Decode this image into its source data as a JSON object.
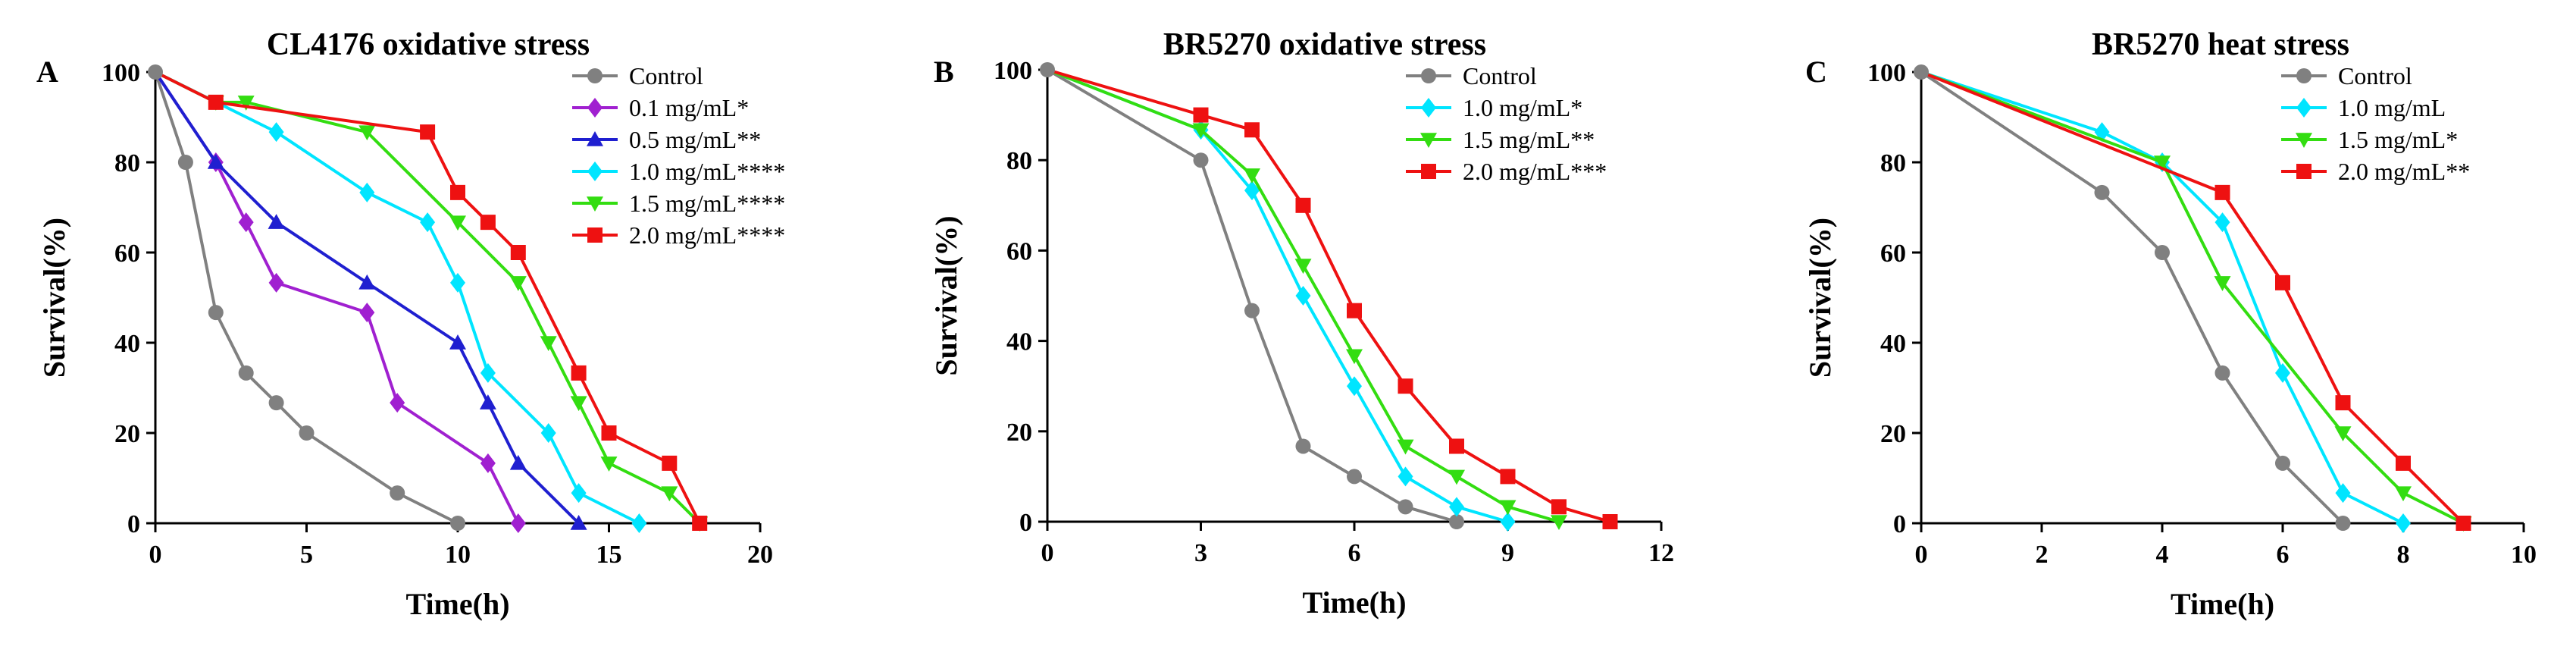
{
  "figure": {
    "panels": [
      "A",
      "B",
      "C"
    ]
  },
  "chart_data": [
    {
      "type": "line",
      "panel_label": "A",
      "title": "CL4176 oxidative stress",
      "xlabel": "Time(h)",
      "ylabel": "Survival(%)",
      "xlim": [
        0,
        20
      ],
      "ylim": [
        0,
        100
      ],
      "xticks": [
        0,
        5,
        10,
        15,
        20
      ],
      "yticks": [
        0,
        20,
        40,
        60,
        80,
        100
      ],
      "legend_position": "top-right",
      "series": [
        {
          "name": "Control",
          "color": "#808080",
          "marker": "circle",
          "x": [
            0,
            1,
            2,
            3,
            4,
            5,
            8,
            10
          ],
          "y": [
            100,
            80,
            46.7,
            33.3,
            26.7,
            20,
            6.7,
            0
          ]
        },
        {
          "name": "0.1 mg/mL*",
          "color": "#A020D0",
          "marker": "diamond",
          "x": [
            0,
            2,
            3,
            4,
            7,
            8,
            11,
            12
          ],
          "y": [
            100,
            80,
            66.7,
            53.3,
            46.7,
            26.7,
            13.3,
            0
          ]
        },
        {
          "name": "0.5 mg/mL**",
          "color": "#1F1FD0",
          "marker": "triangle-up",
          "x": [
            0,
            2,
            4,
            7,
            10,
            11,
            12,
            14
          ],
          "y": [
            100,
            80,
            66.7,
            53.3,
            40,
            26.7,
            13.3,
            0
          ]
        },
        {
          "name": "1.0 mg/mL****",
          "color": "#00E5FF",
          "marker": "diamond",
          "x": [
            0,
            4,
            7,
            9,
            10,
            11,
            13,
            14,
            16
          ],
          "y": [
            100,
            86.7,
            73.3,
            66.7,
            53.3,
            33.3,
            20,
            6.7,
            0
          ]
        },
        {
          "name": "1.5 mg/mL****",
          "color": "#33DD11",
          "marker": "triangle-down",
          "x": [
            0,
            2,
            3,
            7,
            10,
            12,
            13,
            14,
            15,
            17,
            18
          ],
          "y": [
            100,
            93.3,
            93.3,
            86.7,
            66.7,
            53.3,
            40,
            26.7,
            13.3,
            6.7,
            0
          ]
        },
        {
          "name": "2.0 mg/mL****",
          "color": "#EE1111",
          "marker": "square",
          "x": [
            0,
            2,
            9,
            10,
            11,
            12,
            14,
            15,
            17,
            18
          ],
          "y": [
            100,
            93.3,
            86.7,
            73.3,
            66.7,
            60,
            33.3,
            20,
            13.3,
            0
          ]
        }
      ]
    },
    {
      "type": "line",
      "panel_label": "B",
      "title": "BR5270 oxidative stress",
      "xlabel": "Time(h)",
      "ylabel": "Survival(%)",
      "xlim": [
        0,
        12
      ],
      "ylim": [
        0,
        100
      ],
      "xticks": [
        0,
        3,
        6,
        9,
        12
      ],
      "yticks": [
        0,
        20,
        40,
        60,
        80,
        100
      ],
      "legend_position": "top-right",
      "series": [
        {
          "name": "Control",
          "color": "#808080",
          "marker": "circle",
          "x": [
            0,
            3,
            4,
            5,
            6,
            7,
            8
          ],
          "y": [
            100,
            80,
            46.7,
            16.7,
            10,
            3.3,
            0
          ]
        },
        {
          "name": "1.0 mg/mL*",
          "color": "#00E5FF",
          "marker": "diamond",
          "x": [
            0,
            3,
            4,
            5,
            6,
            7,
            8,
            9
          ],
          "y": [
            100,
            86.7,
            73.3,
            50,
            30,
            10,
            3.3,
            0
          ]
        },
        {
          "name": "1.5 mg/mL**",
          "color": "#33DD11",
          "marker": "triangle-down",
          "x": [
            0,
            3,
            4,
            5,
            6,
            7,
            8,
            9,
            10
          ],
          "y": [
            100,
            86.7,
            76.7,
            56.7,
            36.7,
            16.7,
            10,
            3.3,
            0
          ]
        },
        {
          "name": "2.0 mg/mL***",
          "color": "#EE1111",
          "marker": "square",
          "x": [
            0,
            3,
            4,
            5,
            6,
            7,
            8,
            9,
            10,
            11
          ],
          "y": [
            100,
            90,
            86.7,
            70,
            46.7,
            30,
            16.7,
            10,
            3.3,
            0
          ]
        }
      ]
    },
    {
      "type": "line",
      "panel_label": "C",
      "title": "BR5270 heat stress",
      "xlabel": "Time(h)",
      "ylabel": "Survival(%)",
      "xlim": [
        0,
        10
      ],
      "ylim": [
        0,
        100
      ],
      "xticks": [
        0,
        2,
        4,
        6,
        8,
        10
      ],
      "yticks": [
        0,
        20,
        40,
        60,
        80,
        100
      ],
      "legend_position": "top-right",
      "series": [
        {
          "name": "Control",
          "color": "#808080",
          "marker": "circle",
          "x": [
            0,
            3,
            4,
            5,
            6,
            7
          ],
          "y": [
            100,
            73.3,
            60,
            33.3,
            13.3,
            0
          ]
        },
        {
          "name": "1.0 mg/mL",
          "color": "#00E5FF",
          "marker": "diamond",
          "x": [
            0,
            3,
            4,
            5,
            6,
            7,
            8
          ],
          "y": [
            100,
            86.7,
            80,
            66.7,
            33.3,
            6.7,
            0
          ]
        },
        {
          "name": "1.5 mg/mL*",
          "color": "#33DD11",
          "marker": "triangle-down",
          "x": [
            0,
            4,
            5,
            7,
            8,
            9
          ],
          "y": [
            100,
            80,
            53.3,
            20,
            6.7,
            0
          ]
        },
        {
          "name": "2.0 mg/mL**",
          "color": "#EE1111",
          "marker": "square",
          "x": [
            0,
            5,
            6,
            7,
            8,
            9
          ],
          "y": [
            100,
            73.3,
            53.3,
            26.7,
            13.3,
            0
          ]
        }
      ]
    }
  ]
}
